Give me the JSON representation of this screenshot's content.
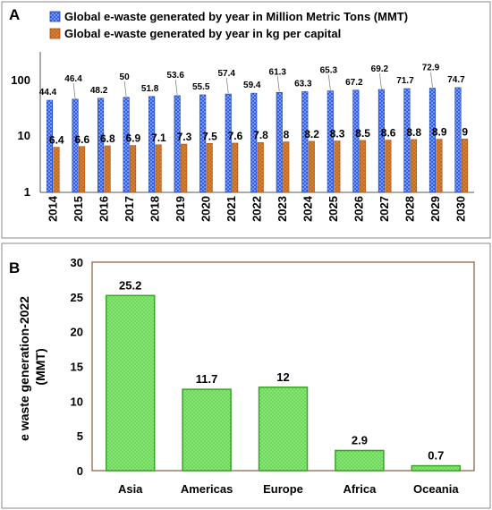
{
  "chart_data": [
    {
      "panel": "A",
      "type": "bar",
      "y_scale": "log",
      "ylim": [
        1,
        100
      ],
      "y_ticks": [
        "1",
        "10",
        "100"
      ],
      "legend_position": "top-left",
      "categories": [
        "2014",
        "2015",
        "2016",
        "2017",
        "2018",
        "2019",
        "2020",
        "2021",
        "2022",
        "2023",
        "2024",
        "2025",
        "2026",
        "2027",
        "2028",
        "2029",
        "2030"
      ],
      "series": [
        {
          "name": "Global e-waste generated by year in Million Metric Tons (MMT)",
          "color": "#2f5eea",
          "values": [
            44.4,
            46.4,
            48.2,
            50,
            51.8,
            53.6,
            55.5,
            57.4,
            59.4,
            61.3,
            63.3,
            65.3,
            67.2,
            69.2,
            71.7,
            72.9,
            74.7
          ],
          "labels": [
            "44.4",
            "46.4",
            "48.2",
            "50",
            "51.8",
            "53.6",
            "55.5",
            "57.4",
            "59.4",
            "61.3",
            "63.3",
            "65.3",
            "67.2",
            "69.2",
            "71.7",
            "72.9",
            "74.7"
          ]
        },
        {
          "name": "Global e-waste generated by year in kg per capital",
          "color": "#e9772e",
          "values": [
            6.4,
            6.6,
            6.8,
            6.9,
            7.1,
            7.3,
            7.5,
            7.6,
            7.8,
            8,
            8.2,
            8.3,
            8.5,
            8.6,
            8.8,
            8.9,
            9
          ],
          "labels": [
            "6.4",
            "6.6",
            "6.8",
            "6.9",
            "7.1",
            "7.3",
            "7.5",
            "7.6",
            "7.8",
            "8",
            "8.2",
            "8.3",
            "8.5",
            "8.6",
            "8.8",
            "8.9",
            "9"
          ]
        }
      ]
    },
    {
      "panel": "B",
      "type": "bar",
      "ylabel": "e waste generation-2022 (MMT)",
      "ylim": [
        0,
        30
      ],
      "y_ticks": [
        "0",
        "5",
        "10",
        "15",
        "20",
        "25",
        "30"
      ],
      "categories": [
        "Asia",
        "Americas",
        "Europe",
        "Africa",
        "Oceania"
      ],
      "values": [
        25.2,
        11.7,
        12,
        2.9,
        0.7
      ],
      "labels": [
        "25.2",
        "11.7",
        "12",
        "2.9",
        "0.7"
      ],
      "color": "#7ee06a",
      "edge_color": "#39a32a"
    }
  ]
}
